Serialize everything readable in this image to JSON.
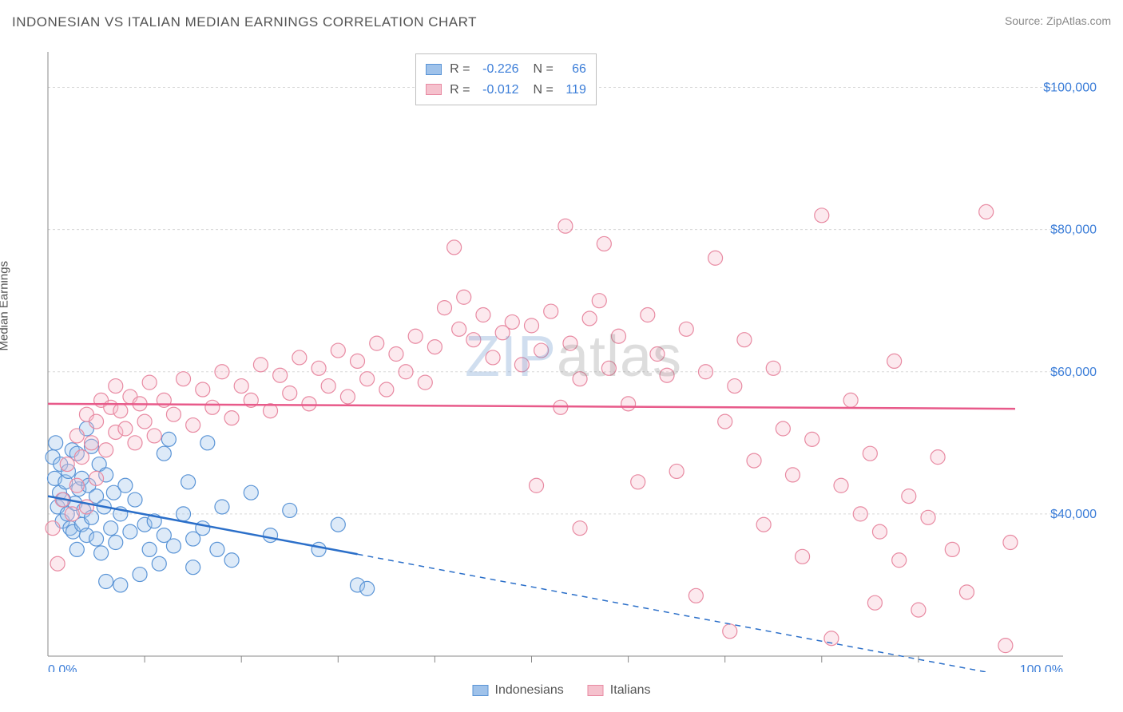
{
  "title": "INDONESIAN VS ITALIAN MEDIAN EARNINGS CORRELATION CHART",
  "source": "Source: ZipAtlas.com",
  "y_axis_label": "Median Earnings",
  "watermark": {
    "part1": "ZIP",
    "part2": "atlas"
  },
  "chart": {
    "type": "scatter",
    "background_color": "#ffffff",
    "grid_color": "#d8d8d8",
    "axis_color": "#888888",
    "tick_label_color": "#3b7dd8",
    "xlim": [
      0,
      100
    ],
    "ylim": [
      20000,
      105000
    ],
    "y_grid_values": [
      40000,
      60000,
      80000,
      100000
    ],
    "y_tick_labels": [
      "$40,000",
      "$60,000",
      "$80,000",
      "$100,000"
    ],
    "x_tick_labels": {
      "min": "0.0%",
      "max": "100.0%"
    },
    "x_minor_ticks": [
      10,
      20,
      30,
      40,
      50,
      60,
      70,
      80,
      90
    ],
    "marker_radius": 9,
    "marker_stroke_width": 1.2,
    "marker_fill_opacity": 0.35,
    "series": [
      {
        "name": "Indonesians",
        "color_fill": "#9fc2ea",
        "color_stroke": "#5a94d6",
        "trend": {
          "color": "#2b6fc9",
          "width": 2.5,
          "y_at_x0": 42500,
          "y_at_x100": 17000,
          "solid_until_x": 32,
          "dash": "7 6"
        },
        "points": [
          [
            0.5,
            48000
          ],
          [
            0.7,
            45000
          ],
          [
            0.8,
            50000
          ],
          [
            1.0,
            41000
          ],
          [
            1.2,
            43000
          ],
          [
            1.3,
            47000
          ],
          [
            1.5,
            39000
          ],
          [
            1.6,
            42000
          ],
          [
            1.8,
            44500
          ],
          [
            2.0,
            40000
          ],
          [
            2.1,
            46000
          ],
          [
            2.3,
            38000
          ],
          [
            2.5,
            49000
          ],
          [
            2.6,
            37500
          ],
          [
            2.8,
            41500
          ],
          [
            3.0,
            48500
          ],
          [
            3.0,
            35000
          ],
          [
            3.2,
            43500
          ],
          [
            3.5,
            45000
          ],
          [
            3.5,
            38500
          ],
          [
            3.7,
            40500
          ],
          [
            4.0,
            52000
          ],
          [
            4.0,
            37000
          ],
          [
            4.2,
            44000
          ],
          [
            4.5,
            39500
          ],
          [
            4.5,
            49500
          ],
          [
            5.0,
            36500
          ],
          [
            5.0,
            42500
          ],
          [
            5.3,
            47000
          ],
          [
            5.5,
            34500
          ],
          [
            5.8,
            41000
          ],
          [
            6.0,
            45500
          ],
          [
            6.0,
            30500
          ],
          [
            6.5,
            38000
          ],
          [
            6.8,
            43000
          ],
          [
            7.0,
            36000
          ],
          [
            7.5,
            40000
          ],
          [
            7.5,
            30000
          ],
          [
            8.0,
            44000
          ],
          [
            8.5,
            37500
          ],
          [
            9.0,
            42000
          ],
          [
            9.5,
            31500
          ],
          [
            10.0,
            38500
          ],
          [
            10.5,
            35000
          ],
          [
            11.0,
            39000
          ],
          [
            11.5,
            33000
          ],
          [
            12.0,
            37000
          ],
          [
            12.0,
            48500
          ],
          [
            12.5,
            50500
          ],
          [
            13.0,
            35500
          ],
          [
            14.0,
            40000
          ],
          [
            14.5,
            44500
          ],
          [
            15.0,
            36500
          ],
          [
            15.0,
            32500
          ],
          [
            16.0,
            38000
          ],
          [
            16.5,
            50000
          ],
          [
            17.5,
            35000
          ],
          [
            18.0,
            41000
          ],
          [
            19.0,
            33500
          ],
          [
            21.0,
            43000
          ],
          [
            23.0,
            37000
          ],
          [
            25.0,
            40500
          ],
          [
            28.0,
            35000
          ],
          [
            30.0,
            38500
          ],
          [
            32.0,
            30000
          ],
          [
            33.0,
            29500
          ]
        ]
      },
      {
        "name": "Italians",
        "color_fill": "#f5c1cd",
        "color_stroke": "#e88aa2",
        "trend": {
          "color": "#e85a8a",
          "width": 2.5,
          "y_at_x0": 55500,
          "y_at_x100": 54800,
          "solid_until_x": 100,
          "dash": null
        },
        "points": [
          [
            0.5,
            38000
          ],
          [
            1.0,
            33000
          ],
          [
            1.5,
            42000
          ],
          [
            2.0,
            47000
          ],
          [
            2.5,
            40000
          ],
          [
            3.0,
            51000
          ],
          [
            3.0,
            44000
          ],
          [
            3.5,
            48000
          ],
          [
            4.0,
            54000
          ],
          [
            4.0,
            41000
          ],
          [
            4.5,
            50000
          ],
          [
            5.0,
            53000
          ],
          [
            5.0,
            45000
          ],
          [
            5.5,
            56000
          ],
          [
            6.0,
            49000
          ],
          [
            6.5,
            55000
          ],
          [
            7.0,
            51500
          ],
          [
            7.0,
            58000
          ],
          [
            7.5,
            54500
          ],
          [
            8.0,
            52000
          ],
          [
            8.5,
            56500
          ],
          [
            9.0,
            50000
          ],
          [
            9.5,
            55500
          ],
          [
            10.0,
            53000
          ],
          [
            10.5,
            58500
          ],
          [
            11.0,
            51000
          ],
          [
            12.0,
            56000
          ],
          [
            13.0,
            54000
          ],
          [
            14.0,
            59000
          ],
          [
            15.0,
            52500
          ],
          [
            16.0,
            57500
          ],
          [
            17.0,
            55000
          ],
          [
            18.0,
            60000
          ],
          [
            19.0,
            53500
          ],
          [
            20.0,
            58000
          ],
          [
            21.0,
            56000
          ],
          [
            22.0,
            61000
          ],
          [
            23.0,
            54500
          ],
          [
            24.0,
            59500
          ],
          [
            25.0,
            57000
          ],
          [
            26.0,
            62000
          ],
          [
            27.0,
            55500
          ],
          [
            28.0,
            60500
          ],
          [
            29.0,
            58000
          ],
          [
            30.0,
            63000
          ],
          [
            31.0,
            56500
          ],
          [
            32.0,
            61500
          ],
          [
            33.0,
            59000
          ],
          [
            34.0,
            64000
          ],
          [
            35.0,
            57500
          ],
          [
            36.0,
            62500
          ],
          [
            37.0,
            60000
          ],
          [
            38.0,
            65000
          ],
          [
            39.0,
            58500
          ],
          [
            40.0,
            63500
          ],
          [
            41.0,
            69000
          ],
          [
            42.0,
            77500
          ],
          [
            42.5,
            66000
          ],
          [
            43.0,
            70500
          ],
          [
            44.0,
            64500
          ],
          [
            45.0,
            68000
          ],
          [
            46.0,
            62000
          ],
          [
            47.0,
            65500
          ],
          [
            48.0,
            67000
          ],
          [
            49.0,
            61000
          ],
          [
            50.0,
            66500
          ],
          [
            50.5,
            44000
          ],
          [
            51.0,
            63000
          ],
          [
            52.0,
            68500
          ],
          [
            53.0,
            55000
          ],
          [
            53.5,
            80500
          ],
          [
            54.0,
            64000
          ],
          [
            55.0,
            59000
          ],
          [
            55.0,
            38000
          ],
          [
            56.0,
            67500
          ],
          [
            57.0,
            70000
          ],
          [
            57.5,
            78000
          ],
          [
            58.0,
            60500
          ],
          [
            59.0,
            65000
          ],
          [
            60.0,
            55500
          ],
          [
            61.0,
            44500
          ],
          [
            62.0,
            68000
          ],
          [
            63.0,
            62500
          ],
          [
            64.0,
            59500
          ],
          [
            65.0,
            46000
          ],
          [
            66.0,
            66000
          ],
          [
            67.0,
            28500
          ],
          [
            68.0,
            60000
          ],
          [
            69.0,
            76000
          ],
          [
            70.0,
            53000
          ],
          [
            70.5,
            23500
          ],
          [
            71.0,
            58000
          ],
          [
            72.0,
            64500
          ],
          [
            73.0,
            47500
          ],
          [
            74.0,
            38500
          ],
          [
            75.0,
            60500
          ],
          [
            76.0,
            52000
          ],
          [
            77.0,
            45500
          ],
          [
            78.0,
            34000
          ],
          [
            79.0,
            50500
          ],
          [
            80.0,
            82000
          ],
          [
            81.0,
            22500
          ],
          [
            82.0,
            44000
          ],
          [
            83.0,
            56000
          ],
          [
            84.0,
            40000
          ],
          [
            85.0,
            48500
          ],
          [
            85.5,
            27500
          ],
          [
            86.0,
            37500
          ],
          [
            87.5,
            61500
          ],
          [
            88.0,
            33500
          ],
          [
            89.0,
            42500
          ],
          [
            90.0,
            26500
          ],
          [
            91.0,
            39500
          ],
          [
            92.0,
            48000
          ],
          [
            93.5,
            35000
          ],
          [
            95.0,
            29000
          ],
          [
            97.0,
            82500
          ],
          [
            99.0,
            21500
          ],
          [
            99.5,
            36000
          ]
        ]
      }
    ],
    "correlation_box": {
      "border_color": "#bfbfbf",
      "rows": [
        {
          "swatch_fill": "#9fc2ea",
          "swatch_stroke": "#5a94d6",
          "r_label": "R =",
          "r_value": "-0.226",
          "n_label": "N =",
          "n_value": "66"
        },
        {
          "swatch_fill": "#f5c1cd",
          "swatch_stroke": "#e88aa2",
          "r_label": "R =",
          "r_value": "-0.012",
          "n_label": "N =",
          "n_value": "119"
        }
      ]
    },
    "bottom_legend": [
      {
        "swatch_fill": "#9fc2ea",
        "swatch_stroke": "#5a94d6",
        "label": "Indonesians"
      },
      {
        "swatch_fill": "#f5c1cd",
        "swatch_stroke": "#e88aa2",
        "label": "Italians"
      }
    ]
  }
}
